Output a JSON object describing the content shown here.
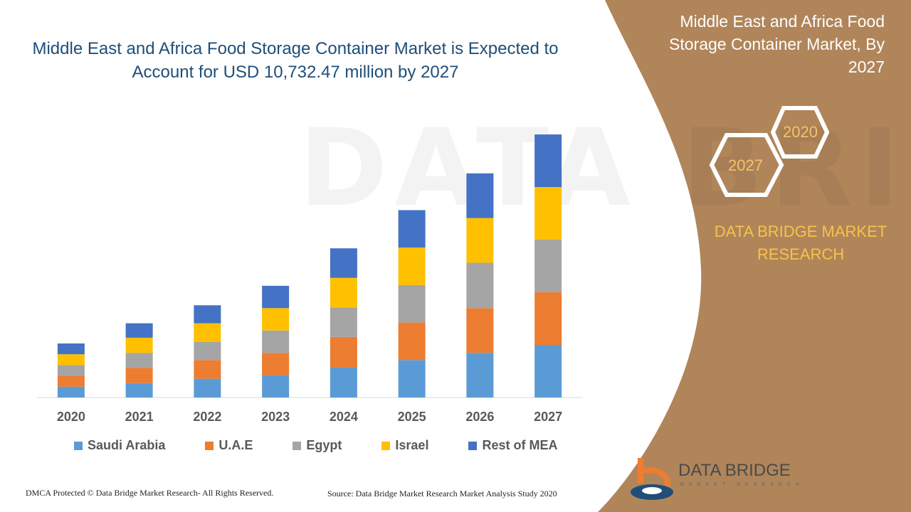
{
  "chart_data": {
    "type": "bar",
    "stacked": true,
    "title": "Middle East and Africa Food Storage Container Market is Expected to Account for USD 10,732.47 million by 2027",
    "categories": [
      "2020",
      "2021",
      "2022",
      "2023",
      "2024",
      "2025",
      "2026",
      "2027"
    ],
    "series": [
      {
        "name": "Saudi Arabia",
        "color": "#5b9bd5",
        "values": [
          15,
          20,
          26,
          31,
          42,
          52,
          62,
          73
        ]
      },
      {
        "name": "U.A.E",
        "color": "#ed7d31",
        "values": [
          15,
          21,
          26,
          31,
          42,
          52,
          62,
          73
        ]
      },
      {
        "name": "Egypt",
        "color": "#a5a5a5",
        "values": [
          15,
          21,
          25,
          31,
          41,
          52,
          63,
          73
        ]
      },
      {
        "name": "Israel",
        "color": "#ffc000",
        "values": [
          15,
          21,
          26,
          31,
          41,
          52,
          62,
          73
        ]
      },
      {
        "name": "Rest of MEA",
        "color": "#4472c4",
        "values": [
          15,
          20,
          25,
          31,
          41,
          52,
          62,
          73
        ]
      }
    ],
    "legend": "bottom",
    "grid": false,
    "ylim": [
      0,
      370
    ]
  },
  "side_panel": {
    "title": "Middle East and Africa Food Storage Container Market, By 2027",
    "hex_labels": [
      "2020",
      "2027"
    ],
    "brand": "DATA BRIDGE MARKET RESEARCH",
    "accent": "#b0855a"
  },
  "footer": {
    "copyright": "DMCA Protected © Data Bridge Market Research- All Rights Reserved.",
    "source": "Source: Data Bridge Market Research Market Analysis Study 2020"
  },
  "logo": {
    "name": "DATA BRIDGE",
    "sub": "MARKET RESEARCH"
  },
  "watermark": "DATA BRIDGE"
}
